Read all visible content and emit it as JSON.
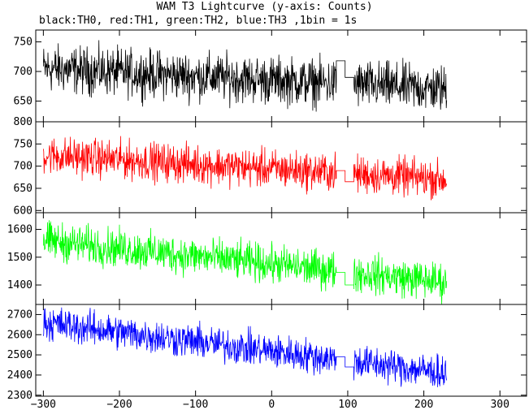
{
  "chart_data": {
    "type": "line",
    "title": "WAM T3 Lightcurve (y-axis: Counts)",
    "subtitle": "black:TH0, red:TH1, green:TH2, blue:TH3 ,1bin = 1s",
    "xlim": [
      -310,
      335
    ],
    "xticks": [
      -300,
      -200,
      -100,
      0,
      100,
      200,
      300
    ],
    "gap": {
      "start": 85,
      "end": 108
    },
    "x_end": 230,
    "panels": [
      {
        "name": "TH0",
        "color": "#000000",
        "ylim": [
          615,
          770
        ],
        "yticks": [
          650,
          700,
          750
        ],
        "trend": [
          705,
          670
        ],
        "noise": 28,
        "gap_levels": [
          718,
          690
        ]
      },
      {
        "name": "TH1",
        "color": "#ff0000",
        "ylim": [
          595,
          800
        ],
        "yticks": [
          600,
          650,
          700,
          750,
          800
        ],
        "trend": [
          725,
          670
        ],
        "noise": 30,
        "gap_levels": [
          690,
          665
        ]
      },
      {
        "name": "TH2",
        "color": "#00ff00",
        "ylim": [
          1330,
          1660
        ],
        "yticks": [
          1400,
          1500,
          1600
        ],
        "trend": [
          1560,
          1410
        ],
        "noise": 48,
        "gap_levels": [
          1445,
          1400
        ]
      },
      {
        "name": "TH3",
        "color": "#0000ff",
        "ylim": [
          2295,
          2750
        ],
        "yticks": [
          2300,
          2400,
          2500,
          2600,
          2700
        ],
        "trend": [
          2660,
          2410
        ],
        "noise": 60,
        "gap_levels": [
          2490,
          2440
        ]
      }
    ]
  }
}
